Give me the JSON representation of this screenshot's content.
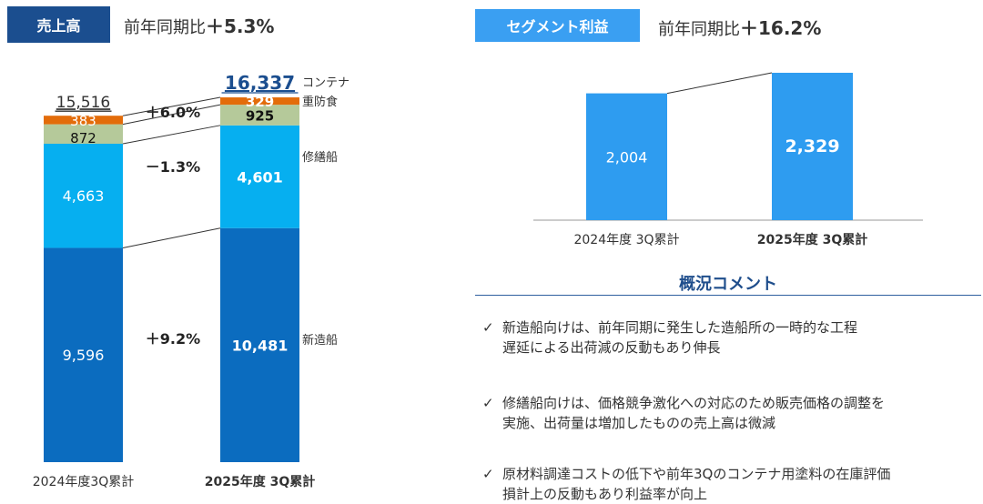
{
  "colors": {
    "navy": "#1b4e8f",
    "shinzo": "#0b6cbf",
    "shuzen": "#06aff0",
    "juboshoku": "#b5c99a",
    "container": "#e36c0a",
    "segment_bar": "#2e9cf0",
    "segment_badge": "#3a9ff2",
    "total_text_blue": "#1b4e8f"
  },
  "sales": {
    "badge": "売上高",
    "yoy_prefix": "前年同期比",
    "yoy_value": "＋5.3%"
  },
  "segment": {
    "badge": "セグメント利益",
    "yoy_prefix": "前年同期比",
    "yoy_value": "＋16.2%"
  },
  "comments": {
    "title": "概況コメント",
    "check_icon": "✓",
    "items": [
      {
        "line1": "新造船向けは、前年同期に発生した造船所の一時的な工程",
        "line2": "遅延による出荷減の反動もあり伸長"
      },
      {
        "line1": "修繕船向けは、価格競争激化への対応のため販売価格の調整を",
        "line2": "実施、出荷量は増加したものの売上高は微減"
      },
      {
        "line1": "原材料調達コストの低下や前年3Qのコンテナ用塗料の在庫評価",
        "line2": "損計上の反動もあり利益率が向上"
      }
    ]
  },
  "chart_data": [
    {
      "type": "bar",
      "stacked": true,
      "categories": [
        "2024年度3Q累計",
        "2025年度 3Q累計"
      ],
      "series": [
        {
          "name": "新造船",
          "values": [
            9596,
            10481
          ],
          "labels": [
            "9,596",
            "10,481"
          ],
          "change": "＋9.2%"
        },
        {
          "name": "修繕船",
          "values": [
            4663,
            4601
          ],
          "labels": [
            "4,663",
            "4,601"
          ],
          "change": "－1.3%"
        },
        {
          "name": "重防食",
          "values": [
            872,
            925
          ],
          "labels": [
            "872",
            "925"
          ],
          "change": "＋6.0%"
        },
        {
          "name": "コンテナ",
          "values": [
            383,
            329
          ],
          "labels": [
            "383",
            "329"
          ]
        }
      ],
      "totals": [
        15516,
        16337
      ],
      "total_labels": [
        "15,516",
        "16,337"
      ]
    },
    {
      "type": "bar",
      "categories": [
        "2024年度 3Q累計",
        "2025年度 3Q累計"
      ],
      "values": [
        2004,
        2329
      ],
      "labels": [
        "2,004",
        "2,329"
      ]
    }
  ]
}
